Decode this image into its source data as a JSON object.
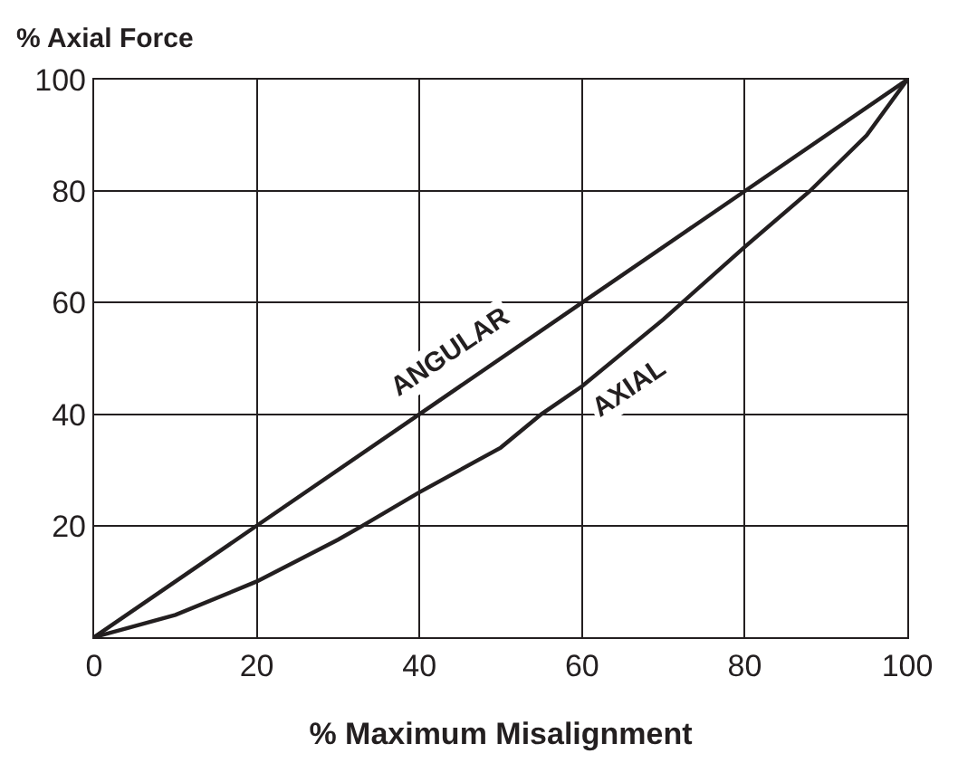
{
  "chart_data": {
    "type": "line",
    "xlabel": "% Maximum Misalignment",
    "ylabel": "% Axial Force",
    "xlim": [
      0,
      100
    ],
    "ylim": [
      0,
      100
    ],
    "xticks": [
      0,
      20,
      40,
      60,
      80,
      100
    ],
    "yticks": [
      20,
      40,
      60,
      80,
      100
    ],
    "grid": true,
    "legend": false,
    "marker": "none",
    "line_style": "solid",
    "series": [
      {
        "name": "ANGULAR",
        "color": "#231f20",
        "x": [
          0,
          20,
          40,
          60,
          80,
          100
        ],
        "values": [
          0,
          20,
          40,
          60,
          80,
          100
        ]
      },
      {
        "name": "AXIAL",
        "color": "#231f20",
        "x": [
          0,
          10,
          20,
          30,
          33,
          40,
          50,
          55,
          60,
          70,
          80,
          88,
          95,
          100
        ],
        "values": [
          0,
          4,
          10,
          17.5,
          20,
          26,
          34,
          40,
          45,
          57,
          70,
          80,
          90,
          100
        ]
      }
    ]
  }
}
